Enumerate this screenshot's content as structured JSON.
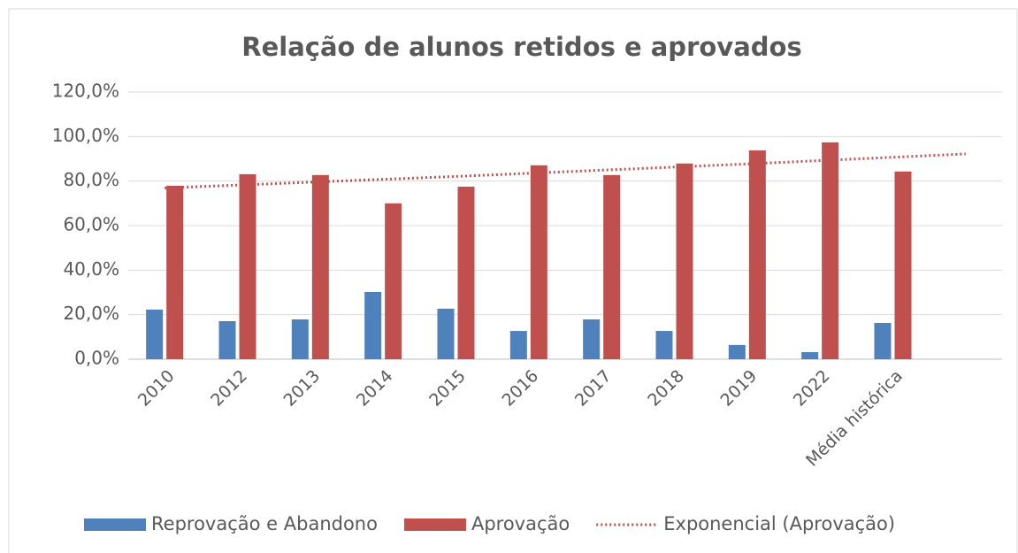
{
  "chart_data": {
    "type": "bar",
    "title": "Relação de alunos retidos e aprovados",
    "categories": [
      "2010",
      "2012",
      "2013",
      "2014",
      "2015",
      "2016",
      "2017",
      "2018",
      "2019",
      "2022",
      "Média histórica",
      null
    ],
    "series": [
      {
        "name": "Reprovação e Abandono",
        "color": "#4f81bd",
        "values": [
          22.3,
          17.1,
          17.9,
          30.2,
          22.7,
          12.7,
          17.9,
          12.7,
          6.4,
          3.2,
          16.3,
          null
        ]
      },
      {
        "name": "Aprovação",
        "color": "#c0504d",
        "values": [
          77.9,
          83.1,
          82.7,
          70.0,
          77.5,
          87.1,
          82.7,
          87.9,
          93.8,
          97.4,
          84.3,
          null
        ]
      },
      {
        "name": "Exponencial (Aprovação)",
        "type": "line",
        "style": "dotted",
        "color": "#c0504d",
        "values": [
          76.9,
          78.2,
          79.5,
          80.8,
          82.1,
          83.5,
          84.9,
          86.3,
          87.7,
          89.2,
          90.7,
          92.2
        ]
      }
    ],
    "ylim": [
      0,
      120
    ],
    "yticks": [
      {
        "value": 0,
        "label": "0,0%"
      },
      {
        "value": 20,
        "label": "20,0%"
      },
      {
        "value": 40,
        "label": "40,0%"
      },
      {
        "value": 60,
        "label": "60,0%"
      },
      {
        "value": 80,
        "label": "80,0%"
      },
      {
        "value": 100,
        "label": "100,0%"
      },
      {
        "value": 120,
        "label": "120,0%"
      }
    ],
    "grid": true,
    "legend": "bottom"
  }
}
